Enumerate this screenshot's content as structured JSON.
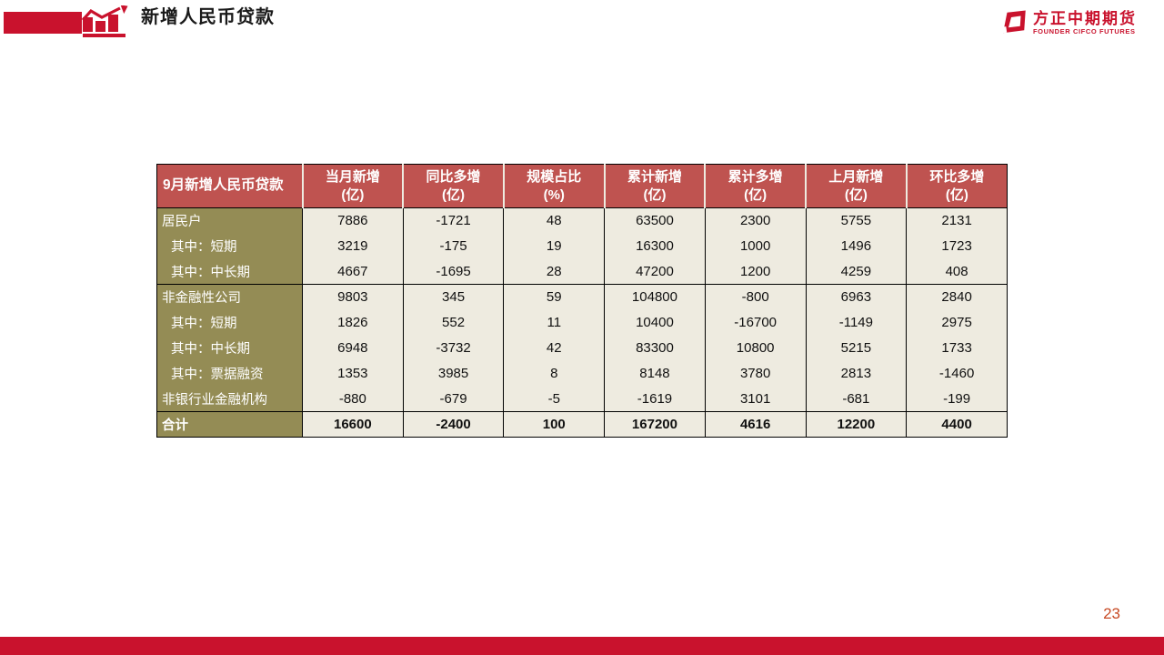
{
  "slide_title": "新增人民币贷款",
  "logo": {
    "name": "方正中期期货",
    "tagline": "FOUNDER CIFCO FUTURES"
  },
  "page_number": "23",
  "table": {
    "corner_header": "9月新增人民币贷款",
    "column_headers": [
      {
        "title": "当月新增",
        "unit": "(亿)"
      },
      {
        "title": "同比多增",
        "unit": "(亿)"
      },
      {
        "title": "规模占比",
        "unit": "(%)"
      },
      {
        "title": "累计新增",
        "unit": "(亿)"
      },
      {
        "title": "累计多增",
        "unit": "(亿)"
      },
      {
        "title": "上月新增",
        "unit": "(亿)"
      },
      {
        "title": "环比多增",
        "unit": "(亿)"
      }
    ],
    "rows": [
      {
        "label": "居民户",
        "indent": false,
        "group_start": false,
        "total": false,
        "values": [
          "7886",
          "-1721",
          "48",
          "63500",
          "2300",
          "5755",
          "2131"
        ]
      },
      {
        "label": "其中：短期",
        "indent": true,
        "group_start": false,
        "total": false,
        "values": [
          "3219",
          "-175",
          "19",
          "16300",
          "1000",
          "1496",
          "1723"
        ]
      },
      {
        "label": "其中：中长期",
        "indent": true,
        "group_start": false,
        "total": false,
        "values": [
          "4667",
          "-1695",
          "28",
          "47200",
          "1200",
          "4259",
          "408"
        ]
      },
      {
        "label": "非金融性公司",
        "indent": false,
        "group_start": true,
        "total": false,
        "values": [
          "9803",
          "345",
          "59",
          "104800",
          "-800",
          "6963",
          "2840"
        ]
      },
      {
        "label": "其中：短期",
        "indent": true,
        "group_start": false,
        "total": false,
        "values": [
          "1826",
          "552",
          "11",
          "10400",
          "-16700",
          "-1149",
          "2975"
        ]
      },
      {
        "label": "其中：中长期",
        "indent": true,
        "group_start": false,
        "total": false,
        "values": [
          "6948",
          "-3732",
          "42",
          "83300",
          "10800",
          "5215",
          "1733"
        ]
      },
      {
        "label": "其中：票据融资",
        "indent": true,
        "group_start": false,
        "total": false,
        "values": [
          "1353",
          "3985",
          "8",
          "8148",
          "3780",
          "2813",
          "-1460"
        ]
      },
      {
        "label": "非银行业金融机构",
        "indent": false,
        "group_start": false,
        "total": false,
        "values": [
          "-880",
          "-679",
          "-5",
          "-1619",
          "3101",
          "-681",
          "-199"
        ]
      },
      {
        "label": "合计",
        "indent": false,
        "group_start": true,
        "total": true,
        "values": [
          "16600",
          "-2400",
          "100",
          "167200",
          "4616",
          "12200",
          "4400"
        ]
      }
    ]
  },
  "colors": {
    "brand_red": "#C9122D",
    "table_header_bg": "#BF5350",
    "row_label_bg": "#948C55",
    "data_cell_bg": "#EEEBE0",
    "page_number_color": "#C74A24"
  }
}
